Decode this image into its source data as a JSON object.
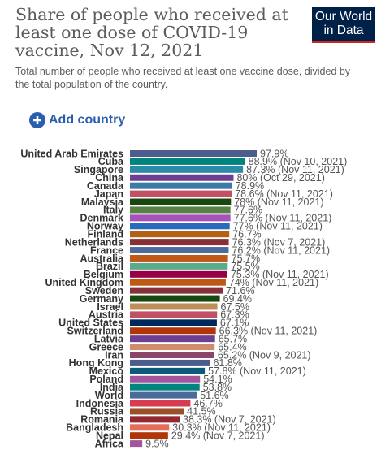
{
  "logo": [
    "Our World",
    "in Data"
  ],
  "button": "Add country",
  "chart_data": {
    "type": "bar",
    "orientation": "horizontal",
    "title": "Share of people who received at least one dose of COVID-19 vaccine, Nov 12, 2021",
    "subtitle": "Total number of people who received at least one vaccine dose, divided by the total population of the country.",
    "categories": [
      "United Arab Emirates",
      "Cuba",
      "Singapore",
      "China",
      "Canada",
      "Japan",
      "Malaysia",
      "Italy",
      "Denmark",
      "Norway",
      "Finland",
      "Netherlands",
      "France",
      "Australia",
      "Brazil",
      "Belgium",
      "United Kingdom",
      "Sweden",
      "Germany",
      "Israel",
      "Austria",
      "United States",
      "Switzerland",
      "Latvia",
      "Greece",
      "Iran",
      "Hong Kong",
      "Mexico",
      "Poland",
      "India",
      "World",
      "Indonesia",
      "Russia",
      "Romania",
      "Bangladesh",
      "Nepal",
      "Africa"
    ],
    "values": [
      97.9,
      88.9,
      87.3,
      80,
      78.9,
      78.6,
      78,
      77.6,
      77.6,
      77,
      76.7,
      76.3,
      76.2,
      75.7,
      75.5,
      75.3,
      74,
      71.6,
      69.4,
      67.5,
      67.3,
      67.1,
      66.3,
      65.7,
      65.4,
      65.2,
      61.8,
      57.8,
      54.1,
      53.8,
      51.6,
      46.7,
      41.5,
      38.3,
      30.3,
      29.4,
      9.5
    ],
    "value_labels": [
      "97.9%",
      "88.9% (Nov 10, 2021)",
      "87.3% (Nov 11, 2021)",
      "80% (Oct 29, 2021)",
      "78.9%",
      "78.6% (Nov 11, 2021)",
      "78% (Nov 11, 2021)",
      "77.6%",
      "77.6% (Nov 11, 2021)",
      "77% (Nov 11, 2021)",
      "76.7%",
      "76.3% (Nov 7, 2021)",
      "76.2% (Nov 11, 2021)",
      "75.7%",
      "75.5%",
      "75.3% (Nov 11, 2021)",
      "74% (Nov 11, 2021)",
      "71.6%",
      "69.4%",
      "67.5%",
      "67.3%",
      "67.1%",
      "66.3% (Nov 11, 2021)",
      "65.7%",
      "65.4%",
      "65.2% (Nov 9, 2021)",
      "61.8%",
      "57.8% (Nov 11, 2021)",
      "54.1%",
      "53.8%",
      "51.6%",
      "46.7%",
      "41.5%",
      "38.3% (Nov 7, 2021)",
      "30.3% (Nov 11, 2021)",
      "29.4% (Nov 7, 2021)",
      "9.5%"
    ],
    "colors": [
      "#4c5c8c",
      "#00847e",
      "#2b8aa8",
      "#6d3e91",
      "#3a7ca5",
      "#c15065",
      "#18470f",
      "#578145",
      "#a652ba",
      "#286bbb",
      "#b16214",
      "#883039",
      "#4c6a9c",
      "#c05917",
      "#58ac8c",
      "#970046",
      "#be5915",
      "#883039",
      "#18470f",
      "#bc8e5a",
      "#c15065",
      "#00295b",
      "#b13507",
      "#6d3e91",
      "#cf8d6c",
      "#8c4569",
      "#4c5c8c",
      "#0a5a7a",
      "#a2559c",
      "#00847e",
      "#4c6a9c",
      "#d73c50",
      "#9a5129",
      "#932834",
      "#e56e5a",
      "#b13507",
      "#a2559c"
    ]
  }
}
